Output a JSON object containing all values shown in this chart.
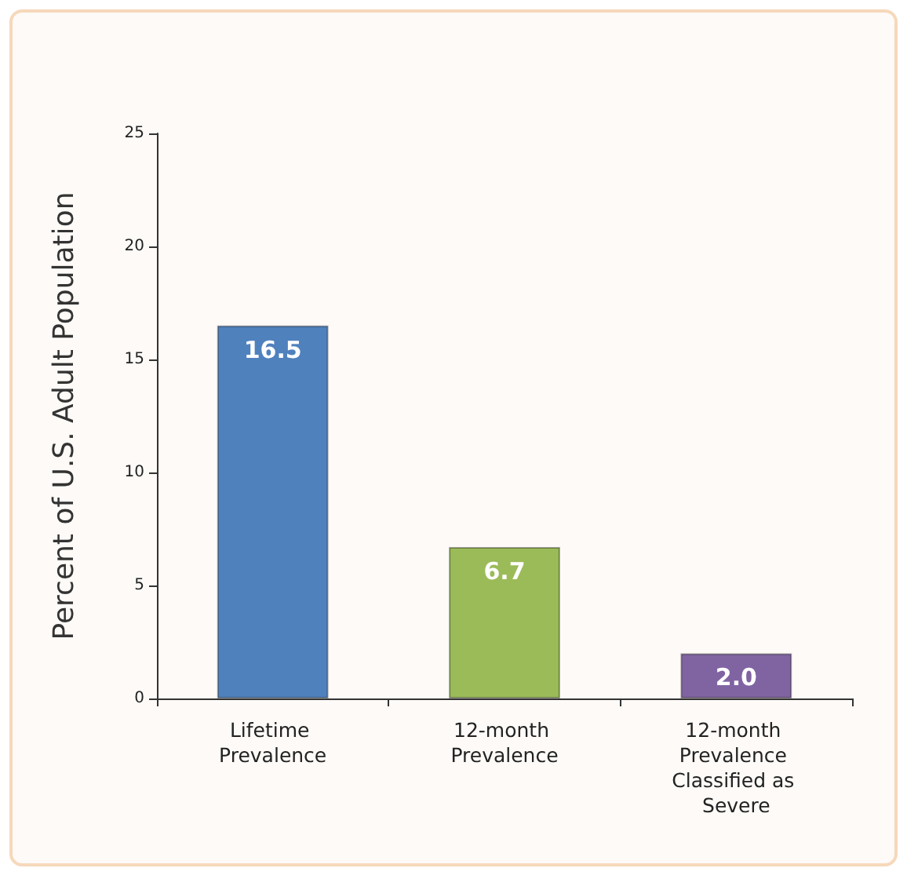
{
  "chart_data": {
    "type": "bar",
    "ylabel": "Percent of U.S. Adult Population",
    "categories": [
      "Lifetime Prevalence",
      "12-month Prevalence",
      "12-month Prevalence Classified as Severe"
    ],
    "values": [
      16.5,
      6.7,
      2.0
    ],
    "colors": [
      "#4f81bd",
      "#9bbb59",
      "#8064a2"
    ],
    "value_labels": [
      "16.5",
      "6.7",
      "2.0"
    ],
    "ylim": [
      0,
      25
    ],
    "yticks": [
      0,
      5,
      10,
      15,
      20,
      25
    ]
  }
}
